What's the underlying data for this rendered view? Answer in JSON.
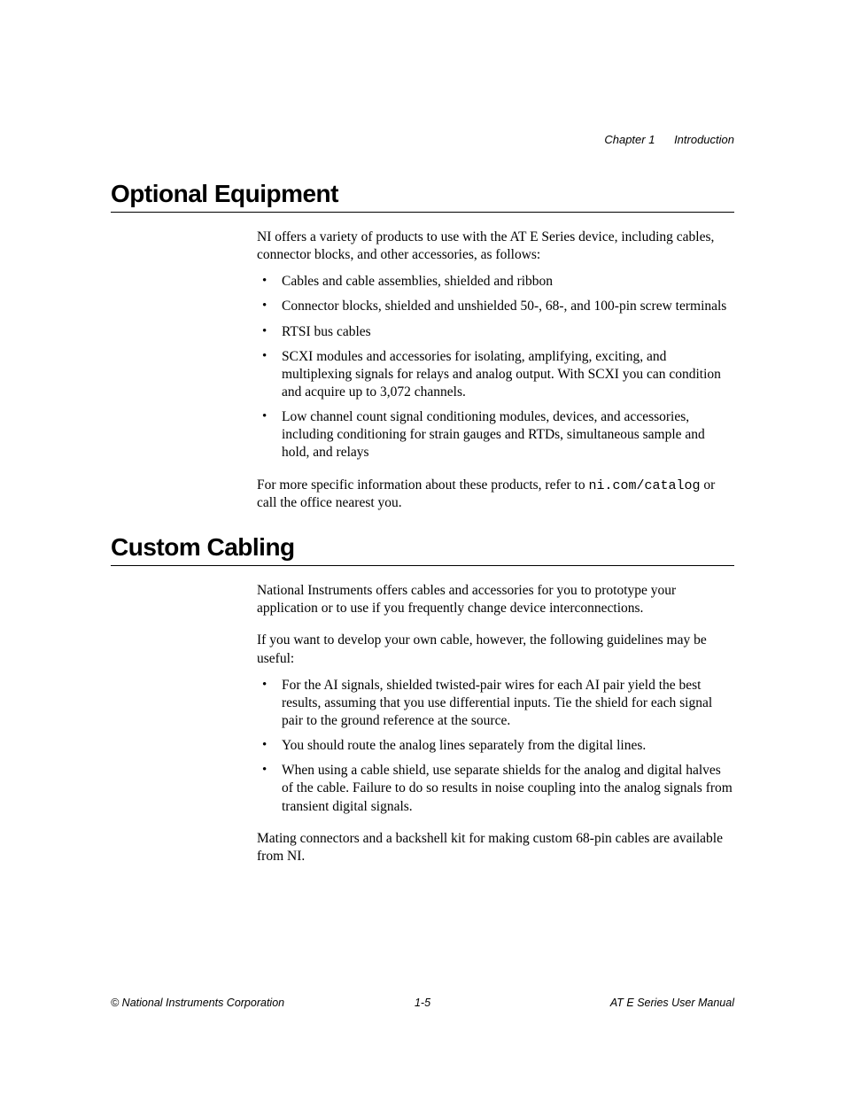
{
  "header": {
    "chapter": "Chapter 1",
    "title": "Introduction"
  },
  "sections": {
    "optional_equipment": {
      "heading": "Optional Equipment",
      "intro": "NI offers a variety of products to use with the AT E Series device, including cables, connector blocks, and other accessories, as follows:",
      "bullets": [
        "Cables and cable assemblies, shielded and ribbon",
        "Connector blocks, shielded and unshielded 50-, 68-, and 100-pin screw terminals",
        "RTSI bus cables",
        "SCXI modules and accessories for isolating, amplifying, exciting, and multiplexing signals for relays and analog output. With SCXI you can condition and acquire up to 3,072 channels.",
        "Low channel count signal conditioning modules, devices, and accessories, including conditioning for strain gauges and RTDs, simultaneous sample and hold, and relays"
      ],
      "closing_pre": "For more specific information about these products, refer to ",
      "closing_url": "ni.com/catalog",
      "closing_post": " or call the office nearest you."
    },
    "custom_cabling": {
      "heading": "Custom Cabling",
      "para1": "National Instruments offers cables and accessories for you to prototype your application or to use if you frequently change device interconnections.",
      "para2": "If you want to develop your own cable, however, the following guidelines may be useful:",
      "bullets": [
        "For the AI signals, shielded twisted-pair wires for each AI pair yield the best results, assuming that you use differential inputs. Tie the shield for each signal pair to the ground reference at the source.",
        "You should route the analog lines separately from the digital lines.",
        "When using a cable shield, use separate shields for the analog and digital halves of the cable. Failure to do so results in noise coupling into the analog signals from transient digital signals."
      ],
      "closing": "Mating connectors and a backshell kit for making custom 68-pin cables are available from NI."
    }
  },
  "footer": {
    "left": "© National Instruments Corporation",
    "center": "1-5",
    "right": "AT E Series User Manual"
  }
}
